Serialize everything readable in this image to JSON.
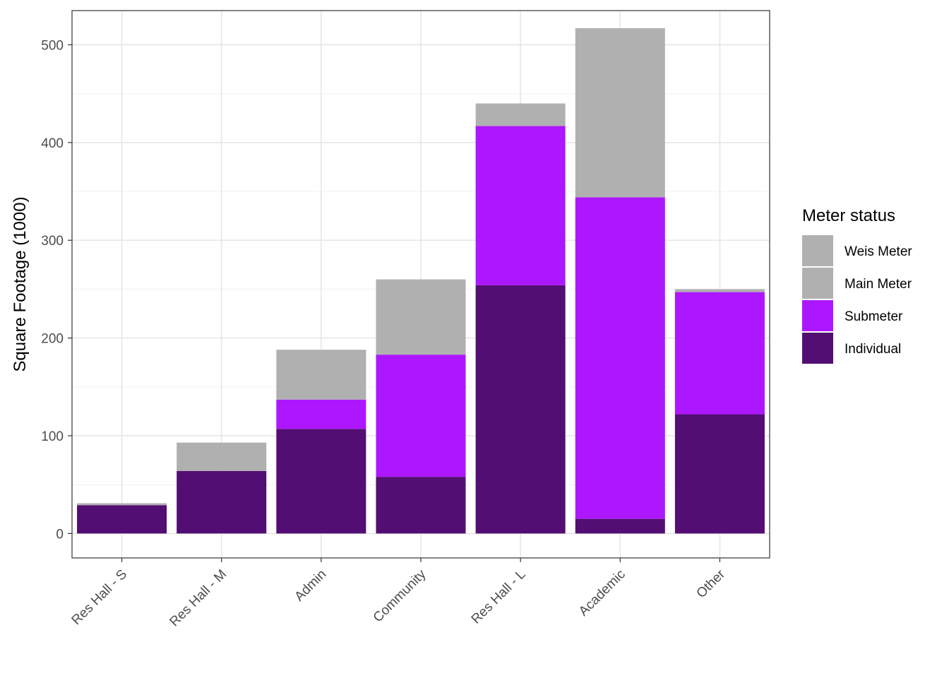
{
  "chart_data": {
    "type": "bar",
    "stacked": true,
    "xlabel": "",
    "ylabel": "Square Footage (1000)",
    "ylim": [
      -25,
      535
    ],
    "yticks": [
      0,
      100,
      200,
      300,
      400,
      500
    ],
    "categories": [
      "Res Hall - S",
      "Res Hall - M",
      "Admin",
      "Community",
      "Res Hall - L",
      "Academic",
      "Other"
    ],
    "series": [
      {
        "name": "Individual",
        "color": "#520E72",
        "values": [
          29,
          64,
          107,
          58,
          254,
          15,
          122
        ]
      },
      {
        "name": "Submeter",
        "color": "#AD17FF",
        "values": [
          0,
          0,
          30,
          125,
          163,
          329,
          125
        ]
      },
      {
        "name": "Main Meter",
        "color": "#B0B0B0",
        "values": [
          2,
          29,
          51,
          77,
          23,
          173,
          3
        ]
      },
      {
        "name": "Weis Meter",
        "color": "#B0B0B0",
        "values": [
          0,
          0,
          0,
          0,
          0,
          0,
          0
        ]
      }
    ],
    "legend": {
      "title": "Meter status",
      "position": "right",
      "items": [
        "Weis Meter",
        "Main Meter",
        "Submeter",
        "Individual"
      ]
    },
    "grid": true,
    "theme": "bw"
  }
}
